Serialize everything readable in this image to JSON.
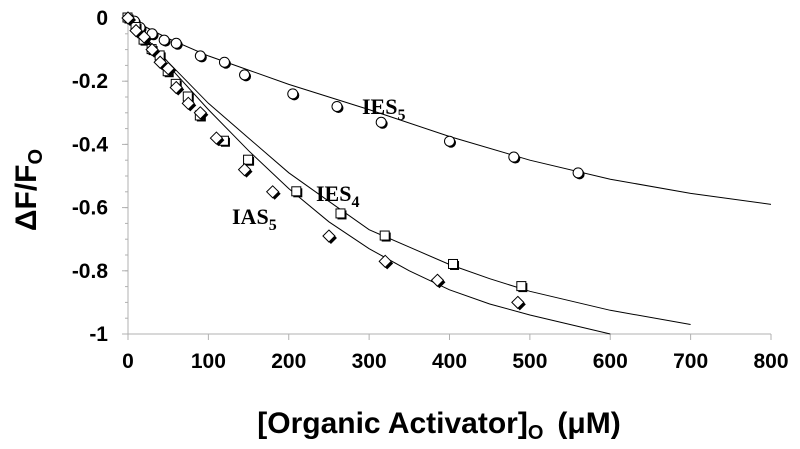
{
  "chart_data": {
    "type": "scatter",
    "title": "",
    "xlabel": {
      "main": "[Organic Activator]",
      "sub": "O",
      "unit": "(μM)"
    },
    "ylabel": {
      "main": "ΔF/F",
      "sub": "O"
    },
    "xlim": [
      0,
      800
    ],
    "ylim": [
      -1,
      0
    ],
    "xticks": [
      0,
      100,
      200,
      300,
      400,
      500,
      600,
      700,
      800
    ],
    "yticks": [
      0,
      -0.2,
      -0.4,
      -0.6,
      -0.8,
      -1
    ],
    "ytick_labels": [
      "0",
      "-0.2",
      "-0.4",
      "-0.6",
      "-0.8",
      "-1"
    ],
    "grid": false,
    "legend": "none",
    "series": [
      {
        "name": "IES5",
        "label_main": "IES",
        "label_sub": "5",
        "marker": "circle",
        "x": [
          0,
          8,
          15,
          30,
          45,
          60,
          90,
          120,
          145,
          205,
          260,
          315,
          400,
          480,
          560
        ],
        "y": [
          0,
          -0.01,
          -0.03,
          -0.05,
          -0.07,
          -0.08,
          -0.12,
          -0.14,
          -0.18,
          -0.24,
          -0.28,
          -0.33,
          -0.39,
          -0.44,
          -0.49
        ],
        "fit": {
          "x_max": 800,
          "points": [
            [
              0,
              0
            ],
            [
              50,
              -0.065
            ],
            [
              100,
              -0.12
            ],
            [
              150,
              -0.165
            ],
            [
              200,
              -0.21
            ],
            [
              300,
              -0.29
            ],
            [
              400,
              -0.375
            ],
            [
              500,
              -0.45
            ],
            [
              600,
              -0.51
            ],
            [
              700,
              -0.555
            ],
            [
              800,
              -0.59
            ]
          ]
        }
      },
      {
        "name": "IES4",
        "label_main": "IES",
        "label_sub": "4",
        "marker": "square",
        "x": [
          0,
          10,
          20,
          30,
          40,
          50,
          60,
          75,
          90,
          120,
          150,
          210,
          265,
          320,
          405,
          490
        ],
        "y": [
          0,
          -0.03,
          -0.07,
          -0.1,
          -0.12,
          -0.17,
          -0.21,
          -0.25,
          -0.31,
          -0.39,
          -0.45,
          -0.55,
          -0.62,
          -0.69,
          -0.78,
          -0.85
        ],
        "fit": {
          "x_max": 700,
          "points": [
            [
              0,
              0
            ],
            [
              50,
              -0.14
            ],
            [
              100,
              -0.27
            ],
            [
              150,
              -0.38
            ],
            [
              200,
              -0.49
            ],
            [
              250,
              -0.58
            ],
            [
              300,
              -0.67
            ],
            [
              350,
              -0.725
            ],
            [
              400,
              -0.78
            ],
            [
              450,
              -0.825
            ],
            [
              500,
              -0.865
            ],
            [
              600,
              -0.925
            ],
            [
              700,
              -0.97
            ]
          ]
        }
      },
      {
        "name": "IAS5",
        "label_main": "IAS",
        "label_sub": "5",
        "marker": "diamond",
        "x": [
          0,
          10,
          20,
          30,
          40,
          50,
          60,
          75,
          90,
          110,
          145,
          180,
          250,
          320,
          385,
          485
        ],
        "y": [
          0,
          -0.04,
          -0.06,
          -0.1,
          -0.14,
          -0.16,
          -0.22,
          -0.27,
          -0.3,
          -0.38,
          -0.48,
          -0.55,
          -0.69,
          -0.77,
          -0.83,
          -0.9
        ],
        "fit": {
          "x_max": 600,
          "points": [
            [
              0,
              0
            ],
            [
              50,
              -0.15
            ],
            [
              100,
              -0.29
            ],
            [
              150,
              -0.42
            ],
            [
              200,
              -0.54
            ],
            [
              250,
              -0.645
            ],
            [
              300,
              -0.73
            ],
            [
              350,
              -0.8
            ],
            [
              400,
              -0.86
            ],
            [
              450,
              -0.905
            ],
            [
              500,
              -0.94
            ],
            [
              550,
              -0.97
            ],
            [
              600,
              -1.0
            ]
          ]
        }
      }
    ]
  }
}
